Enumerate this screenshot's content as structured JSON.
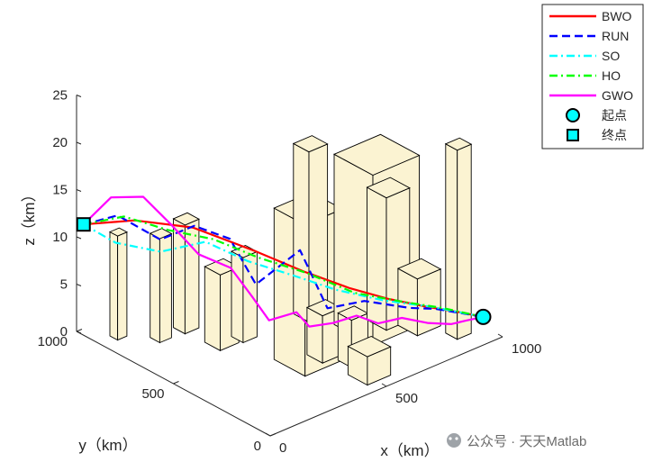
{
  "chart_data": {
    "type": "line",
    "xlabel": "x（km）",
    "ylabel": "y（km）",
    "zlabel": "z（km）",
    "xlim": [
      0,
      1000
    ],
    "ylim": [
      0,
      1000
    ],
    "zlim": [
      0,
      25
    ],
    "x_ticks": [
      "0",
      "500",
      "1000"
    ],
    "y_ticks": [
      "0",
      "500",
      "1000"
    ],
    "z_ticks": [
      "0",
      "5",
      "10",
      "15",
      "20",
      "25"
    ],
    "legend_position": "top-right",
    "start": {
      "label": "起点",
      "x": 1000,
      "y": 100,
      "z": 1
    },
    "end": {
      "label": "终点",
      "x": 30,
      "y": 1000,
      "z": 11
    },
    "series": [
      {
        "name": "BWO",
        "color": "#ff0000",
        "dash": "solid",
        "points": [
          [
            30,
            1000,
            11
          ],
          [
            150,
            880,
            11.5
          ],
          [
            300,
            760,
            10.5
          ],
          [
            450,
            620,
            8
          ],
          [
            560,
            500,
            6
          ],
          [
            660,
            380,
            4.5
          ],
          [
            760,
            300,
            3.2
          ],
          [
            860,
            220,
            2.2
          ],
          [
            940,
            160,
            1.5
          ],
          [
            1000,
            100,
            1
          ]
        ]
      },
      {
        "name": "RUN",
        "color": "#0000ff",
        "dash": "dashed",
        "points": [
          [
            30,
            1000,
            11
          ],
          [
            110,
            920,
            12
          ],
          [
            210,
            820,
            9.5
          ],
          [
            290,
            740,
            11
          ],
          [
            360,
            640,
            10
          ],
          [
            430,
            590,
            5
          ],
          [
            520,
            470,
            9
          ],
          [
            580,
            400,
            3
          ],
          [
            680,
            330,
            3.5
          ],
          [
            800,
            240,
            2.5
          ],
          [
            880,
            200,
            2
          ],
          [
            1000,
            100,
            1
          ]
        ]
      },
      {
        "name": "SO",
        "color": "#00ffff",
        "dash": "dashdot",
        "points": [
          [
            30,
            1000,
            11
          ],
          [
            110,
            930,
            9
          ],
          [
            220,
            830,
            8
          ],
          [
            330,
            730,
            9
          ],
          [
            430,
            630,
            7
          ],
          [
            540,
            520,
            5.5
          ],
          [
            640,
            430,
            4
          ],
          [
            760,
            320,
            2.8
          ],
          [
            880,
            220,
            2
          ],
          [
            1000,
            100,
            1
          ]
        ]
      },
      {
        "name": "HO",
        "color": "#00ff00",
        "dash": "dashdot",
        "points": [
          [
            30,
            1000,
            11
          ],
          [
            120,
            900,
            12
          ],
          [
            230,
            800,
            10.5
          ],
          [
            340,
            700,
            9.5
          ],
          [
            450,
            600,
            7.5
          ],
          [
            560,
            490,
            6
          ],
          [
            680,
            380,
            3.8
          ],
          [
            800,
            270,
            2.8
          ],
          [
            900,
            190,
            2
          ],
          [
            1000,
            100,
            1
          ]
        ]
      },
      {
        "name": "GWO",
        "color": "#ff00ff",
        "dash": "solid",
        "points": [
          [
            30,
            1000,
            11
          ],
          [
            90,
            930,
            14
          ],
          [
            170,
            860,
            14
          ],
          [
            240,
            800,
            11
          ],
          [
            300,
            730,
            8
          ],
          [
            380,
            660,
            6.5
          ],
          [
            430,
            610,
            3.5
          ],
          [
            470,
            570,
            1
          ],
          [
            530,
            500,
            2
          ],
          [
            560,
            470,
            0.5
          ],
          [
            620,
            420,
            0.8
          ],
          [
            680,
            370,
            1.5
          ],
          [
            740,
            330,
            0.5
          ],
          [
            800,
            280,
            1
          ],
          [
            860,
            220,
            0.5
          ],
          [
            920,
            170,
            0.3
          ],
          [
            960,
            140,
            0.6
          ],
          [
            1000,
            100,
            1
          ]
        ]
      }
    ],
    "buildings": [
      {
        "x": 60,
        "y": 900,
        "w": 40,
        "d": 40,
        "h": 11
      },
      {
        "x": 150,
        "y": 800,
        "w": 50,
        "d": 50,
        "h": 11
      },
      {
        "x": 250,
        "y": 800,
        "w": 60,
        "d": 60,
        "h": 11.5
      },
      {
        "x": 260,
        "y": 650,
        "w": 80,
        "d": 80,
        "h": 8
      },
      {
        "x": 350,
        "y": 620,
        "w": 60,
        "d": 60,
        "h": 9
      },
      {
        "x": 350,
        "y": 400,
        "w": 160,
        "d": 160,
        "h": 16
      },
      {
        "x": 450,
        "y": 350,
        "w": 80,
        "d": 80,
        "h": 5
      },
      {
        "x": 500,
        "y": 250,
        "w": 70,
        "d": 70,
        "h": 5
      },
      {
        "x": 460,
        "y": 150,
        "w": 100,
        "d": 100,
        "h": 3
      },
      {
        "x": 600,
        "y": 600,
        "w": 80,
        "d": 80,
        "h": 18
      },
      {
        "x": 650,
        "y": 450,
        "w": 200,
        "d": 200,
        "h": 18
      },
      {
        "x": 750,
        "y": 400,
        "w": 100,
        "d": 100,
        "h": 14
      },
      {
        "x": 800,
        "y": 300,
        "w": 100,
        "d": 100,
        "h": 6
      },
      {
        "x": 880,
        "y": 150,
        "w": 60,
        "d": 60,
        "h": 20
      }
    ]
  },
  "watermark": "公众号 · 天天Matlab",
  "colors": {
    "building_fill": "#fbf3d2",
    "building_edge": "#000000"
  }
}
